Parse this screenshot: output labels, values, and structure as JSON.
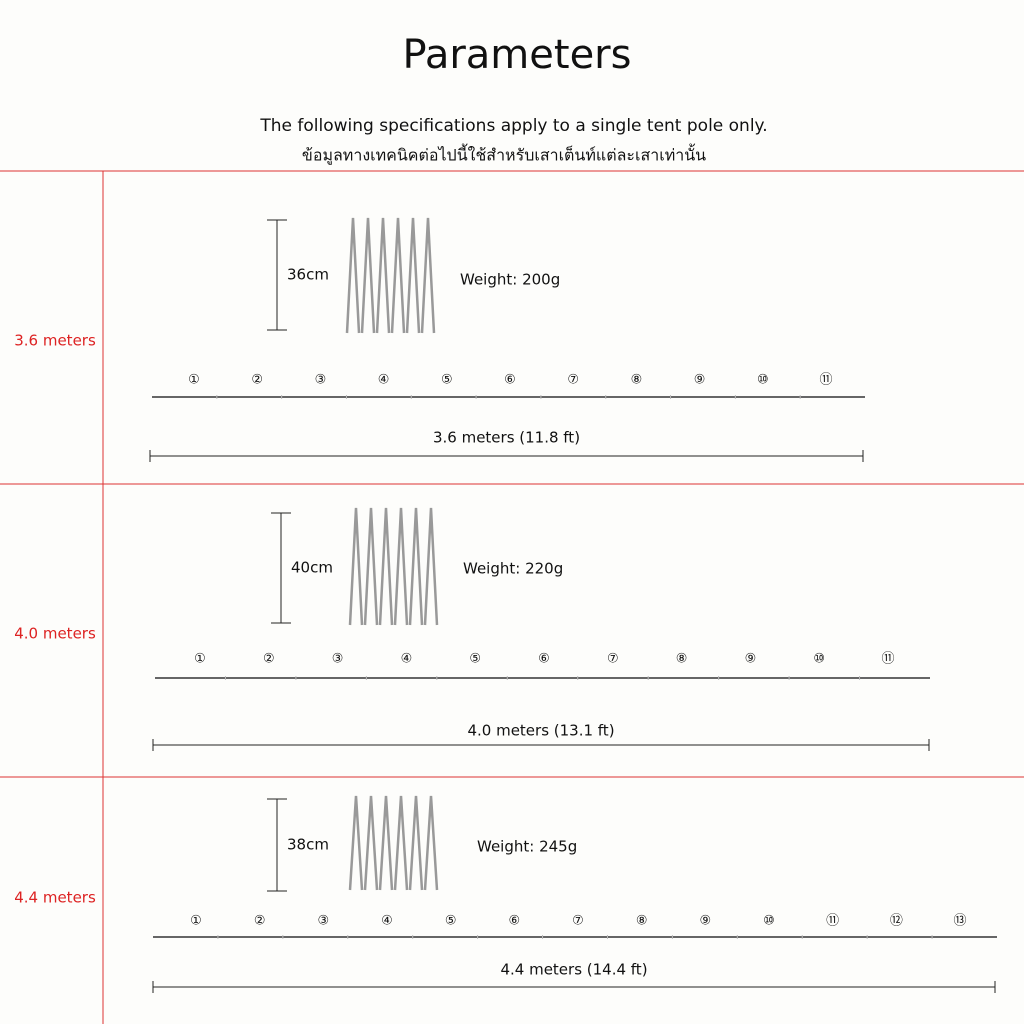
{
  "header": {
    "title": "Parameters",
    "subtitle": "The following specifications apply to a single tent pole only.",
    "subtitle_thai": "ข้อมูลทางเทคนิคต่อไปนี้ใช้สำหรับเสาเต็นท์แต่ละเสาเท่านั้น"
  },
  "rows": [
    {
      "label": "3.6 meters",
      "folded_length": "36cm",
      "weight": "Weight: 200g",
      "total_length": "3.6 meters (11.8 ft)",
      "segments": [
        "①",
        "②",
        "③",
        "④",
        "⑤",
        "⑥",
        "⑦",
        "⑧",
        "⑨",
        "⑩",
        "⑪"
      ]
    },
    {
      "label": "4.0 meters",
      "folded_length": "40cm",
      "weight": "Weight: 220g",
      "total_length": "4.0 meters (13.1 ft)",
      "segments": [
        "①",
        "②",
        "③",
        "④",
        "⑤",
        "⑥",
        "⑦",
        "⑧",
        "⑨",
        "⑩",
        "⑪"
      ]
    },
    {
      "label": "4.4 meters",
      "folded_length": "38cm",
      "weight": "Weight: 245g",
      "total_length": "4.4 meters (14.4 ft)",
      "segments": [
        "①",
        "②",
        "③",
        "④",
        "⑤",
        "⑥",
        "⑦",
        "⑧",
        "⑨",
        "⑩",
        "⑪",
        "⑫",
        "⑬"
      ]
    }
  ]
}
